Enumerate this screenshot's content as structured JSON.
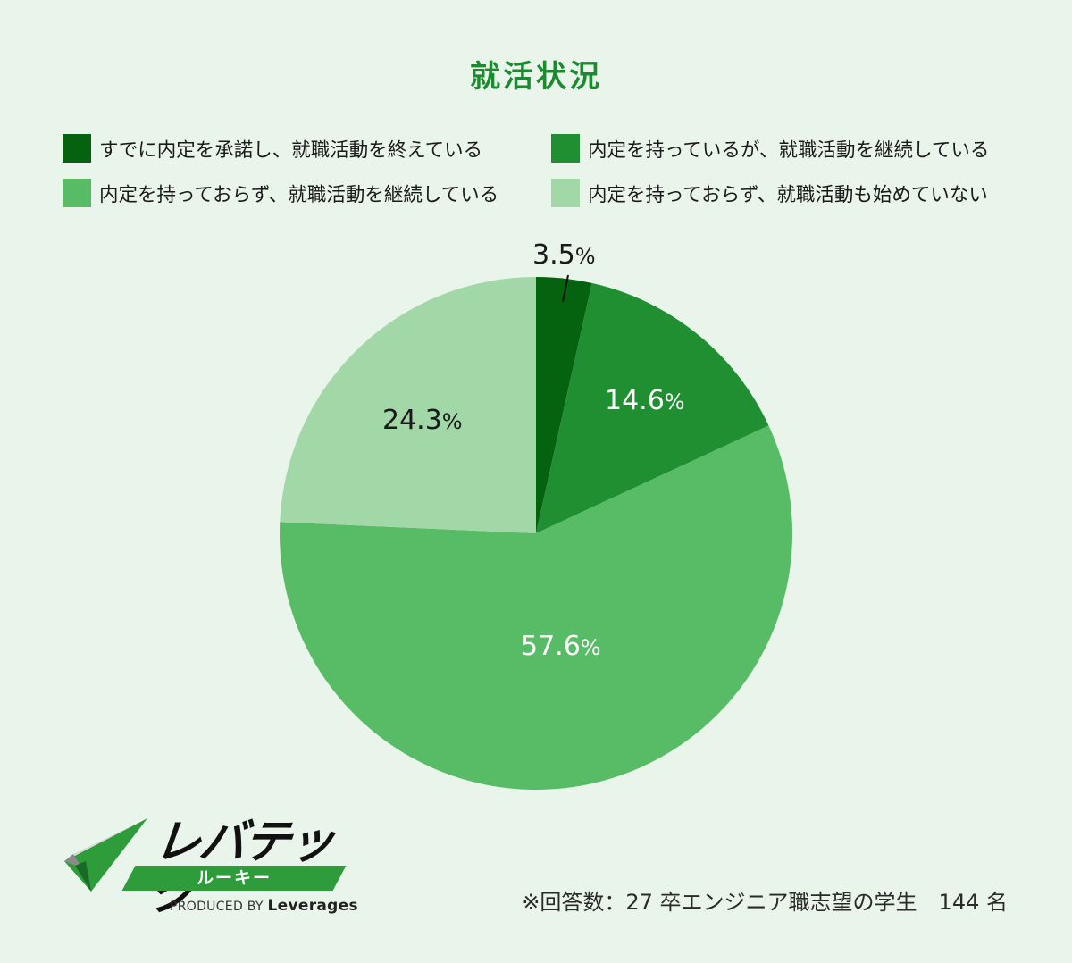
{
  "title": "就活状況",
  "legend": [
    {
      "label": "すでに内定を承諾し、就職活動を終えている",
      "color": "#05620f"
    },
    {
      "label": "内定を持っているが、就職活動を継続している",
      "color": "#1f8f32"
    },
    {
      "label": "内定を持っておらず、就職活動を継続している",
      "color": "#58bb66"
    },
    {
      "label": "内定を持っておらず、就職活動も始めていない",
      "color": "#a2d7a8"
    }
  ],
  "slices": [
    {
      "value_text": "3.5",
      "unit": "%"
    },
    {
      "value_text": "14.6",
      "unit": "%"
    },
    {
      "value_text": "57.6",
      "unit": "%"
    },
    {
      "value_text": "24.3",
      "unit": "%"
    }
  ],
  "logo": {
    "name": "レバテック",
    "sub": "ルーキー",
    "produced_by": "PRODUCED BY",
    "company": "Leverages"
  },
  "note": "※回答数：27 卒エンジニア職志望の学生　144 名",
  "chart_data": {
    "type": "pie",
    "title": "就活状況",
    "categories": [
      "すでに内定を承諾し、就職活動を終えている",
      "内定を持っているが、就職活動を継続している",
      "内定を持っておらず、就職活動を継続している",
      "内定を持っておらず、就職活動も始めていない"
    ],
    "values": [
      3.5,
      14.6,
      57.6,
      24.3
    ],
    "unit": "%",
    "colors": [
      "#05620f",
      "#1f8f32",
      "#58bb66",
      "#a2d7a8"
    ],
    "start_angle": "12 o'clock",
    "direction": "clockwise",
    "legend_position": "top (2 columns)",
    "annotation": "※回答数：27 卒エンジニア職志望の学生　144 名"
  }
}
